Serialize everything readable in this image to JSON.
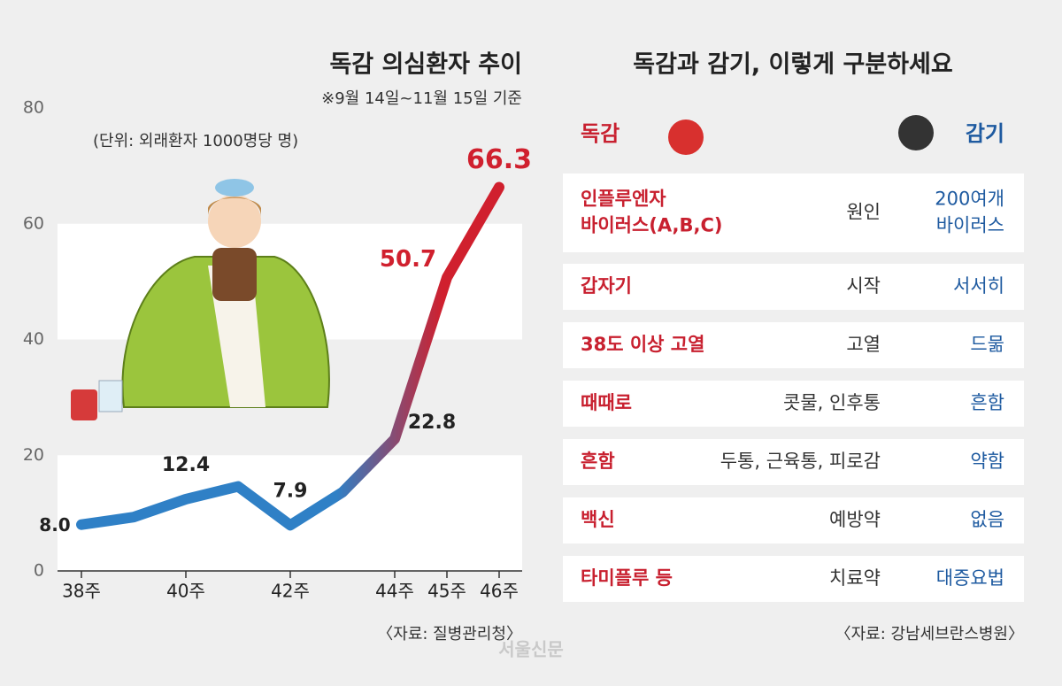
{
  "chart_data": {
    "type": "line",
    "title": "독감 의심환자 추이",
    "subtitle": "※9월 14일~11월 15일 기준",
    "unit_note": "(단위: 외래환자 1000명당 명)",
    "source": "〈자료: 질병관리청〉",
    "categories": [
      "38주",
      null,
      "40주",
      null,
      "42주",
      null,
      "44주",
      "45주",
      "46주"
    ],
    "values": [
      8.0,
      9.3,
      12.4,
      14.6,
      7.9,
      13.6,
      22.8,
      50.7,
      66.3
    ],
    "value_labels": [
      "8.0",
      null,
      "12.4",
      null,
      "7.9",
      null,
      "22.8",
      "50.7",
      "66.3"
    ],
    "colors": [
      "#2f80c6",
      "#d0202e"
    ],
    "ylim": [
      0,
      80
    ],
    "yticks": [
      0,
      20,
      40,
      60,
      80
    ],
    "grid": "bands"
  },
  "comparison": {
    "title": "독감과 감기, 이렇게 구분하세요",
    "flu_header": "독감",
    "cold_header": "감기",
    "source": "〈자료: 강남세브란스병원〉",
    "rows": [
      {
        "flu": [
          "인플루엔자",
          "바이러스(A,B,C)"
        ],
        "aspect": [
          "원인"
        ],
        "cold": [
          "200여개",
          "바이러스"
        ]
      },
      {
        "flu": [
          "갑자기"
        ],
        "aspect": [
          "시작"
        ],
        "cold": [
          "서서히"
        ]
      },
      {
        "flu": [
          "38도 이상 고열"
        ],
        "aspect": [
          "고열"
        ],
        "cold": [
          "드묾"
        ]
      },
      {
        "flu": [
          "때때로"
        ],
        "aspect": [
          "콧물, 인후통"
        ],
        "cold": [
          "흔함"
        ]
      },
      {
        "flu": [
          "흔함"
        ],
        "aspect": [
          "두통, 근육통, 피로감"
        ],
        "cold": [
          "약함"
        ]
      },
      {
        "flu": [
          "백신"
        ],
        "aspect": [
          "예방약"
        ],
        "cold": [
          "없음"
        ]
      },
      {
        "flu": [
          "타미플루 등"
        ],
        "aspect": [
          "치료약"
        ],
        "cold": [
          "대증요법"
        ]
      }
    ]
  },
  "watermark": "서울신문"
}
